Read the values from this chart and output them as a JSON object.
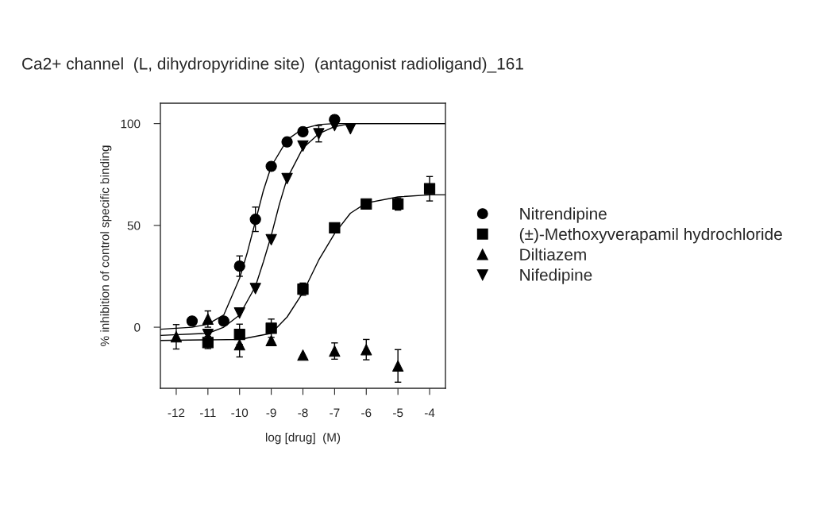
{
  "chart_data": {
    "type": "scatter",
    "title": "Ca2+ channel  (L, dihydropyridine site)  (antagonist radioligand)_161",
    "xlabel": "log [drug]  (M)",
    "ylabel": "% inhibition of control specific binding",
    "xlim": [
      -12.5,
      -3.5
    ],
    "ylim": [
      -30,
      110
    ],
    "xticks": [
      -12,
      -11,
      -10,
      -9,
      -8,
      -7,
      -6,
      -5,
      -4
    ],
    "yticks": [
      0,
      50,
      100
    ],
    "grid": false,
    "legend": "right",
    "series": [
      {
        "name": "Nitrendipine",
        "color": "#000000",
        "marker": "circle",
        "x": [
          -11.5,
          -10.5,
          -10,
          -9.5,
          -9,
          -8.5,
          -8,
          -7
        ],
        "values": [
          3,
          3,
          30,
          53,
          79,
          91,
          96,
          102
        ],
        "errors": [
          null,
          null,
          5,
          6,
          null,
          null,
          null,
          null
        ]
      },
      {
        "name": "(±)-Methoxyverapamil hydrochloride",
        "color": "#000000",
        "marker": "square",
        "x": [
          -11,
          -10,
          -9,
          -8,
          -7,
          -6,
          -5,
          -4
        ],
        "values": [
          -7.5,
          -3.5,
          -0.5,
          18.7,
          48.8,
          60.5,
          60.5,
          68
        ],
        "errors": [
          3,
          5,
          4.5,
          3,
          null,
          null,
          3,
          6
        ]
      },
      {
        "name": "Diltiazem",
        "color": "#000000",
        "marker": "triangle",
        "x": [
          -12,
          -11,
          -10,
          -9,
          -8,
          -7,
          -6,
          -5
        ],
        "values": [
          -4.7,
          4,
          -8.6,
          -6.6,
          -13.7,
          -11.7,
          -11,
          -19
        ],
        "errors": [
          6,
          4,
          6,
          null,
          null,
          4,
          5,
          8
        ]
      },
      {
        "name": "Nifedipine",
        "color": "#000000",
        "marker": "triangle_down",
        "x": [
          -11,
          -10,
          -9.5,
          -9,
          -8.5,
          -8,
          -7.5,
          -7,
          -6.5
        ],
        "values": [
          -3.5,
          7,
          19,
          43,
          73,
          89,
          95,
          99,
          97.5
        ],
        "errors": [
          null,
          null,
          null,
          null,
          null,
          null,
          4,
          null,
          null
        ]
      },
      {
        "type": "line",
        "color": "#000000",
        "x": [
          -12.5,
          -11.5,
          -11,
          -10.5,
          -10,
          -9.75,
          -9.5,
          -9.25,
          -9,
          -8.5,
          -8,
          -7.5,
          -7,
          -6.5,
          -3.5
        ],
        "values": [
          -1,
          0,
          1.5,
          6,
          24,
          37,
          52,
          67,
          79,
          92,
          97.5,
          99.5,
          100,
          100,
          100
        ]
      },
      {
        "type": "line",
        "color": "#000000",
        "x": [
          -12.5,
          -11,
          -10.5,
          -10,
          -9.5,
          -9.25,
          -9,
          -8.75,
          -8.5,
          -8,
          -7.5,
          -7,
          -6.5,
          -3.5
        ],
        "values": [
          -4,
          -3,
          0,
          6,
          20,
          32,
          45,
          60,
          73,
          88,
          95,
          98.5,
          100,
          100
        ]
      },
      {
        "type": "line",
        "color": "#000000",
        "x": [
          -12.5,
          -10,
          -9,
          -8.5,
          -8,
          -7.5,
          -7,
          -6.5,
          -6,
          -5,
          -4,
          -3.5
        ],
        "values": [
          -6.5,
          -6,
          -3,
          5,
          17,
          33,
          46,
          56,
          61,
          64,
          65,
          65
        ]
      }
    ]
  }
}
